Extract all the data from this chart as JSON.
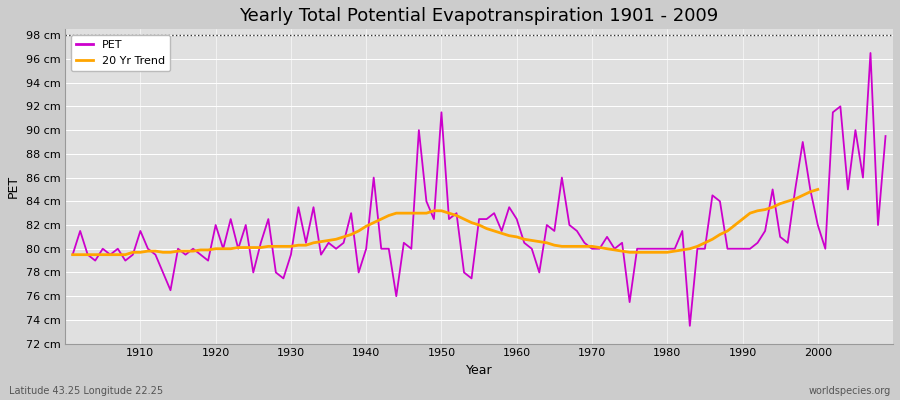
{
  "title": "Yearly Total Potential Evapotranspiration 1901 - 2009",
  "xlabel": "Year",
  "ylabel": "PET",
  "footnote_left": "Latitude 43.25 Longitude 22.25",
  "footnote_right": "worldspecies.org",
  "legend_pet": "PET",
  "legend_trend": "20 Yr Trend",
  "pet_color": "#cc00cc",
  "trend_color": "#ffa500",
  "background_color": "#cccccc",
  "plot_bg_color": "#e0e0e0",
  "grid_color": "#ffffff",
  "ylim": [
    72,
    98.5
  ],
  "ytick_vals": [
    72,
    74,
    76,
    78,
    80,
    82,
    84,
    86,
    88,
    90,
    92,
    94,
    96,
    98
  ],
  "dotted_line_y": 98,
  "xlim": [
    1900,
    2010
  ],
  "xtick_vals": [
    1910,
    1920,
    1930,
    1940,
    1950,
    1960,
    1970,
    1980,
    1990,
    2000
  ],
  "years": [
    1901,
    1902,
    1903,
    1904,
    1905,
    1906,
    1907,
    1908,
    1909,
    1910,
    1911,
    1912,
    1913,
    1914,
    1915,
    1916,
    1917,
    1918,
    1919,
    1920,
    1921,
    1922,
    1923,
    1924,
    1925,
    1926,
    1927,
    1928,
    1929,
    1930,
    1931,
    1932,
    1933,
    1934,
    1935,
    1936,
    1937,
    1938,
    1939,
    1940,
    1941,
    1942,
    1943,
    1944,
    1945,
    1946,
    1947,
    1948,
    1949,
    1950,
    1951,
    1952,
    1953,
    1954,
    1955,
    1956,
    1957,
    1958,
    1959,
    1960,
    1961,
    1962,
    1963,
    1964,
    1965,
    1966,
    1967,
    1968,
    1969,
    1970,
    1971,
    1972,
    1973,
    1974,
    1975,
    1976,
    1977,
    1978,
    1979,
    1980,
    1981,
    1982,
    1983,
    1984,
    1985,
    1986,
    1987,
    1988,
    1989,
    1990,
    1991,
    1992,
    1993,
    1994,
    1995,
    1996,
    1997,
    1998,
    1999,
    2000,
    2001,
    2002,
    2003,
    2004,
    2005,
    2006,
    2007,
    2008,
    2009
  ],
  "pet_values": [
    79.5,
    81.5,
    79.5,
    79.0,
    80.0,
    79.5,
    80.0,
    79.0,
    79.5,
    81.5,
    80.0,
    79.5,
    78.0,
    76.5,
    80.0,
    79.5,
    80.0,
    79.5,
    79.0,
    82.0,
    80.0,
    82.5,
    80.0,
    82.0,
    78.0,
    80.5,
    82.5,
    78.0,
    77.5,
    79.5,
    83.5,
    80.5,
    83.5,
    79.5,
    80.5,
    80.0,
    80.5,
    83.0,
    78.0,
    80.0,
    86.0,
    80.0,
    80.0,
    76.0,
    80.5,
    80.0,
    90.0,
    84.0,
    82.5,
    91.5,
    82.5,
    83.0,
    78.0,
    77.5,
    82.5,
    82.5,
    83.0,
    81.5,
    83.5,
    82.5,
    80.5,
    80.0,
    78.0,
    82.0,
    81.5,
    86.0,
    82.0,
    81.5,
    80.5,
    80.0,
    80.0,
    81.0,
    80.0,
    80.5,
    75.5,
    80.0,
    80.0,
    80.0,
    80.0,
    80.0,
    80.0,
    81.5,
    73.5,
    80.0,
    80.0,
    84.5,
    84.0,
    80.0,
    80.0,
    80.0,
    80.0,
    80.5,
    81.5,
    85.0,
    81.0,
    80.5,
    85.0,
    89.0,
    85.0,
    82.0,
    80.0,
    91.5,
    92.0,
    85.0,
    90.0,
    86.0,
    96.5,
    82.0,
    89.5
  ],
  "trend_values": [
    79.5,
    79.5,
    79.5,
    79.5,
    79.5,
    79.5,
    79.5,
    79.5,
    79.7,
    79.7,
    79.8,
    79.8,
    79.7,
    79.7,
    79.8,
    79.8,
    79.8,
    79.9,
    79.9,
    80.0,
    80.0,
    80.0,
    80.1,
    80.1,
    80.1,
    80.1,
    80.2,
    80.2,
    80.2,
    80.2,
    80.3,
    80.3,
    80.5,
    80.6,
    80.7,
    80.8,
    81.0,
    81.2,
    81.5,
    81.9,
    82.2,
    82.5,
    82.8,
    83.0,
    83.0,
    83.0,
    83.0,
    83.0,
    83.2,
    83.2,
    83.0,
    82.8,
    82.5,
    82.2,
    82.0,
    81.7,
    81.5,
    81.3,
    81.1,
    81.0,
    80.8,
    80.7,
    80.6,
    80.5,
    80.3,
    80.2,
    80.2,
    80.2,
    80.2,
    80.2,
    80.1,
    80.0,
    79.9,
    79.8,
    79.7,
    79.7,
    79.7,
    79.7,
    79.7,
    79.7,
    79.8,
    79.9,
    80.0,
    80.2,
    80.5,
    80.8,
    81.2,
    81.5,
    82.0,
    82.5,
    83.0,
    83.2,
    83.3,
    83.5,
    83.8,
    84.0,
    84.2,
    84.5,
    84.8,
    85.0,
    null,
    null,
    null,
    null,
    null,
    null,
    null,
    null,
    null
  ],
  "figsize": [
    9.0,
    4.0
  ],
  "dpi": 100,
  "title_fontsize": 13,
  "tick_fontsize": 8,
  "label_fontsize": 9,
  "footnote_fontsize": 7,
  "pet_linewidth": 1.3,
  "trend_linewidth": 2.0
}
